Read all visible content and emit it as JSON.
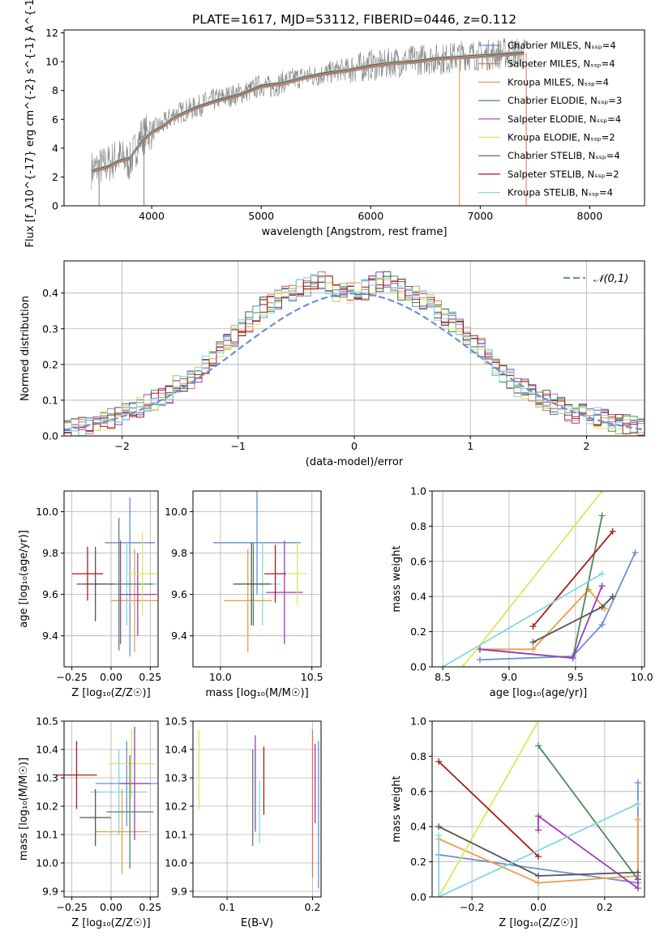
{
  "title": "PLATE=1617, MJD=53112, FIBERID=0446, z=0.112",
  "chart_data": [
    {
      "type": "line",
      "id": "spectrum",
      "xlabel": "wavelength [Angstrom, rest frame]",
      "ylabel": "Flux [f_λ10^{-17} erg cm^{-2} s^{-1} A^{-1}]",
      "xlim": [
        3200,
        8500
      ],
      "ylim": [
        0,
        12.2
      ],
      "xticks": [
        4000,
        5000,
        6000,
        7000,
        8000
      ],
      "yticks": [
        0,
        2,
        4,
        6,
        8,
        10,
        12
      ],
      "grid": false,
      "legend_placement": "right",
      "data": {
        "color": "#808080",
        "x": [
          3450,
          3500,
          3600,
          3700,
          3800,
          3900,
          4000,
          4100,
          4200,
          4300,
          4400,
          4500,
          4600,
          4700,
          4800,
          4900,
          5000,
          5100,
          5200,
          5300,
          5400,
          5500,
          5600,
          5700,
          5800,
          5900,
          6000,
          6100,
          6200,
          6300,
          6400,
          6500,
          6600,
          6700,
          6800,
          6900,
          7000,
          7100,
          7200,
          7300,
          7400
        ],
        "y": [
          2.5,
          2.6,
          2.9,
          3.4,
          3.0,
          4.8,
          5.2,
          5.6,
          6.3,
          6.6,
          6.8,
          7.2,
          7.4,
          7.6,
          7.8,
          8.0,
          8.4,
          8.2,
          8.6,
          8.8,
          9.0,
          9.0,
          9.2,
          9.4,
          9.5,
          9.6,
          9.8,
          9.7,
          10.0,
          10.0,
          10.1,
          10.2,
          10.2,
          10.2,
          10.4,
          10.5,
          10.4,
          10.5,
          10.6,
          10.6,
          10.6
        ]
      },
      "series": [
        {
          "name": "Chabrier MILES, N_SSP=4",
          "color": "#6a8fd6"
        },
        {
          "name": "Salpeter MILES, N_SSP=4",
          "color": "#e26d58"
        },
        {
          "name": "Kroupa MILES, N_SSP=4",
          "color": "#e8a048"
        },
        {
          "name": "Chabrier ELODIE, N_SSP=3",
          "color": "#4d8a5a"
        },
        {
          "name": "Salpeter ELODIE, N_SSP=4",
          "color": "#9b3cb8"
        },
        {
          "name": "Kroupa ELODIE, N_SSP=2",
          "color": "#d8e85a"
        },
        {
          "name": "Chabrier STELIB, N_SSP=4",
          "color": "#555555"
        },
        {
          "name": "Salpeter STELIB, N_SSP=2",
          "color": "#a51c1c"
        },
        {
          "name": "Kroupa STELIB, N_SSP=4",
          "color": "#7fd8e0"
        }
      ],
      "model_x": [
        3450,
        3600,
        3700,
        3800,
        3900,
        4000,
        4100,
        4200,
        4400,
        4600,
        4800,
        5000,
        5200,
        5400,
        5600,
        5800,
        6000,
        6200,
        6400,
        6600,
        6800,
        7000,
        7200,
        7400
      ],
      "model_y": [
        2.4,
        2.7,
        3.1,
        3.3,
        4.4,
        5.1,
        5.5,
        6.1,
        6.8,
        7.3,
        7.7,
        8.3,
        8.5,
        8.9,
        9.2,
        9.4,
        9.7,
        9.9,
        10.0,
        10.2,
        10.3,
        10.4,
        10.5,
        10.6
      ]
    },
    {
      "type": "bar",
      "id": "residual-histogram",
      "xlabel": "(data-model)/error",
      "ylabel": "Normed distribution",
      "xlim": [
        -2.5,
        2.5
      ],
      "ylim": [
        0,
        0.49
      ],
      "xticks": [
        -2,
        -1,
        0,
        1,
        2
      ],
      "yticks": [
        0.0,
        0.1,
        0.2,
        0.3,
        0.4
      ],
      "grid": true,
      "legend_placement": "top-right",
      "reference_curve": {
        "name": "𝒩(0,1)",
        "color": "#6a8fd6",
        "style": "dashed"
      },
      "bin_width": 0.1,
      "bin_start": -2.5,
      "values": [
        0.018,
        0.02,
        0.024,
        0.03,
        0.035,
        0.04,
        0.05,
        0.06,
        0.065,
        0.07,
        0.08,
        0.09,
        0.1,
        0.11,
        0.12,
        0.14,
        0.15,
        0.16,
        0.18,
        0.2,
        0.22,
        0.24,
        0.26,
        0.28,
        0.3,
        0.32,
        0.34,
        0.36,
        0.37,
        0.38,
        0.39,
        0.4,
        0.41,
        0.42,
        0.43,
        0.43,
        0.42,
        0.4,
        0.41,
        0.4,
        0.4,
        0.41,
        0.42,
        0.43,
        0.44,
        0.42,
        0.41,
        0.4,
        0.39,
        0.38,
        0.37,
        0.35,
        0.33,
        0.32,
        0.3,
        0.28,
        0.26,
        0.25,
        0.22,
        0.2,
        0.18,
        0.16,
        0.14,
        0.13,
        0.12,
        0.11,
        0.1,
        0.09,
        0.08,
        0.07,
        0.065,
        0.06,
        0.055,
        0.05,
        0.045,
        0.04,
        0.035,
        0.03,
        0.025,
        0.02
      ]
    },
    {
      "type": "scatter",
      "id": "age-vs-Z",
      "xlabel": "Z [log₁₀(Z/Z☉)]",
      "ylabel": "age  [log₁₀(age/yr)]",
      "xlim": [
        -0.3,
        0.3
      ],
      "ylim": [
        9.25,
        10.1
      ],
      "xticks": [
        -0.25,
        0.0,
        0.25
      ],
      "yticks": [
        9.4,
        9.6,
        9.8,
        10.0
      ],
      "grid": true,
      "points": [
        {
          "x": 0.12,
          "y": 9.85,
          "xerr": 0.16,
          "yerr": [
            0.55,
            0.22
          ],
          "color": "#6a8fd6"
        },
        {
          "x": 0.1,
          "y": 9.65,
          "xerr": 0.2,
          "yerr": 0.2,
          "color": "#7fd8e0"
        },
        {
          "x": 0.15,
          "y": 9.57,
          "xerr": 0.15,
          "yerr": 0.25,
          "color": "#e8a048"
        },
        {
          "x": 0.05,
          "y": 9.65,
          "xerr": 0.22,
          "yerr": 0.32,
          "color": "#4d8a5a"
        },
        {
          "x": 0.17,
          "y": 9.6,
          "xerr": 0.12,
          "yerr": 0.2,
          "color": "#9b3cb8"
        },
        {
          "x": 0.2,
          "y": 9.7,
          "xerr": 0.1,
          "yerr": 0.2,
          "color": "#d8e85a"
        },
        {
          "x": -0.1,
          "y": 9.65,
          "xerr": 0.12,
          "yerr": 0.18,
          "color": "#555555"
        },
        {
          "x": -0.15,
          "y": 9.7,
          "xerr": 0.1,
          "yerr": 0.13,
          "color": "#a51c1c"
        },
        {
          "x": 0.06,
          "y": 9.61,
          "xerr": 0.0,
          "yerr": 0.25,
          "color": "#9b3cb8"
        }
      ]
    },
    {
      "type": "scatter",
      "id": "age-vs-mass",
      "xlabel": "mass [log₁₀(M/M☉)]",
      "ylabel": "",
      "xlim": [
        9.85,
        10.55
      ],
      "ylim": [
        9.25,
        10.1
      ],
      "xticks": [
        10.0,
        10.5
      ],
      "yticks": [
        9.4,
        9.6,
        9.8,
        10.0
      ],
      "grid": true,
      "points": [
        {
          "x": 10.2,
          "y": 9.85,
          "xerr": 0.24,
          "yerr": 0.25,
          "color": "#6a8fd6"
        },
        {
          "x": 10.23,
          "y": 9.65,
          "xerr": 0.1,
          "yerr": 0.2,
          "color": "#7fd8e0"
        },
        {
          "x": 10.15,
          "y": 9.57,
          "xerr": 0.13,
          "yerr": 0.25,
          "color": "#e8a048"
        },
        {
          "x": 10.18,
          "y": 9.65,
          "xerr": 0.1,
          "yerr": 0.2,
          "color": "#4d8a5a"
        },
        {
          "x": 10.35,
          "y": 9.61,
          "xerr": 0.1,
          "yerr": 0.25,
          "color": "#9b3cb8"
        },
        {
          "x": 10.42,
          "y": 9.7,
          "xerr": 0.05,
          "yerr": 0.15,
          "color": "#d8e85a"
        },
        {
          "x": 10.17,
          "y": 9.65,
          "xerr": 0.1,
          "yerr": 0.2,
          "color": "#555555"
        },
        {
          "x": 10.3,
          "y": 9.7,
          "xerr": 0.06,
          "yerr": 0.14,
          "color": "#a51c1c"
        }
      ]
    },
    {
      "type": "line",
      "id": "mass-weight-vs-age",
      "xlabel": "age  [log₁₀(age/yr)]",
      "ylabel": "mass weight",
      "xlim": [
        8.42,
        10.02
      ],
      "ylim": [
        0,
        1
      ],
      "xticks": [
        8.5,
        9.0,
        9.5,
        10.0
      ],
      "yticks": [
        0.0,
        0.2,
        0.4,
        0.6,
        0.8,
        1.0
      ],
      "grid": true,
      "series": [
        {
          "color": "#6a8fd6",
          "x": [
            8.78,
            9.48,
            9.7,
            9.95
          ],
          "y": [
            0.04,
            0.06,
            0.24,
            0.65
          ]
        },
        {
          "color": "#e8a048",
          "x": [
            8.78,
            9.18,
            9.6,
            9.72
          ],
          "y": [
            0.1,
            0.1,
            0.44,
            0.33
          ]
        },
        {
          "color": "#4d8a5a",
          "x": [
            8.78,
            9.48,
            9.7
          ],
          "y": [
            0.1,
            0.05,
            0.86
          ]
        },
        {
          "color": "#9b3cb8",
          "x": [
            8.78,
            9.48,
            9.7
          ],
          "y": [
            0.1,
            0.05,
            0.46
          ]
        },
        {
          "color": "#d8e85a",
          "x": [
            8.65,
            9.7
          ],
          "y": [
            0.0,
            1.0
          ]
        },
        {
          "color": "#555555",
          "x": [
            9.18,
            9.7,
            9.78
          ],
          "y": [
            0.14,
            0.34,
            0.4
          ]
        },
        {
          "color": "#a51c1c",
          "x": [
            9.18,
            9.78
          ],
          "y": [
            0.23,
            0.77
          ]
        },
        {
          "color": "#7fd8e0",
          "x": [
            8.5,
            9.7
          ],
          "y": [
            0.0,
            0.53
          ]
        }
      ]
    },
    {
      "type": "scatter",
      "id": "mass-vs-Z",
      "xlabel": "Z [log₁₀(Z/Z☉)]",
      "ylabel": "mass [log₁₀(M/M☉)]",
      "xlim": [
        -0.3,
        0.3
      ],
      "ylim": [
        9.88,
        10.5
      ],
      "xticks": [
        -0.25,
        0.0,
        0.25
      ],
      "yticks": [
        9.9,
        10.0,
        10.1,
        10.2,
        10.3,
        10.4,
        10.5
      ],
      "grid": true,
      "points": [
        {
          "x": 0.1,
          "y": 10.28,
          "xerr": 0.2,
          "yerr": 0.15,
          "color": "#6a8fd6"
        },
        {
          "x": 0.13,
          "y": 10.35,
          "xerr": 0.15,
          "yerr": 0.12,
          "color": "#d8e85a"
        },
        {
          "x": 0.05,
          "y": 10.25,
          "xerr": 0.18,
          "yerr": 0.15,
          "color": "#7fd8e0"
        },
        {
          "x": 0.07,
          "y": 10.11,
          "xerr": 0.17,
          "yerr": 0.15,
          "color": "#e8a048"
        },
        {
          "x": 0.12,
          "y": 10.18,
          "xerr": 0.15,
          "yerr": 0.2,
          "color": "#4d8a5a"
        },
        {
          "x": 0.15,
          "y": 10.28,
          "xerr": 0.1,
          "yerr": 0.2,
          "color": "#9b3cb8"
        },
        {
          "x": -0.1,
          "y": 10.16,
          "xerr": 0.1,
          "yerr": 0.1,
          "color": "#555555"
        },
        {
          "x": -0.22,
          "y": 10.31,
          "xerr": 0.13,
          "yerr": 0.12,
          "color": "#a51c1c"
        }
      ]
    },
    {
      "type": "scatter",
      "id": "mass-vs-ebv",
      "xlabel": "E(B-V)",
      "ylabel": "",
      "xlim": [
        0.06,
        0.21
      ],
      "ylim": [
        9.88,
        10.5
      ],
      "xticks": [
        0.1,
        0.2
      ],
      "yticks": [
        9.9,
        10.0,
        10.1,
        10.2,
        10.3,
        10.4,
        10.5
      ],
      "grid": true,
      "points": [
        {
          "x": 0.067,
          "y": 10.33,
          "yerr": 0.14,
          "color": "#d8e85a"
        },
        {
          "x": 0.13,
          "y": 10.23,
          "yerr": 0.17,
          "color": "#4d8a5a"
        },
        {
          "x": 0.133,
          "y": 10.28,
          "yerr": 0.17,
          "color": "#9b3cb8"
        },
        {
          "x": 0.138,
          "y": 10.18,
          "yerr": 0.11,
          "color": "#7fd8e0"
        },
        {
          "x": 0.143,
          "y": 10.29,
          "yerr": 0.12,
          "color": "#a51c1c"
        },
        {
          "x": 0.2,
          "y": 10.21,
          "yerr": 0.26,
          "color": "#e26d58"
        },
        {
          "x": 0.203,
          "y": 10.28,
          "yerr": 0.14,
          "color": "#9b3cb8"
        },
        {
          "x": 0.207,
          "y": 10.17,
          "yerr": 0.26,
          "color": "#6a8fd6"
        }
      ]
    },
    {
      "type": "line",
      "id": "mass-weight-vs-Z",
      "xlabel": "Z [log₁₀(Z/Z☉)]",
      "ylabel": "mass weight",
      "xlim": [
        -0.32,
        0.32
      ],
      "ylim": [
        0,
        1
      ],
      "xticks": [
        -0.2,
        0.0,
        0.2
      ],
      "yticks": [
        0.0,
        0.2,
        0.4,
        0.6,
        0.8,
        1.0
      ],
      "grid": true,
      "series": [
        {
          "color": "#6a8fd6",
          "x": [
            -0.3,
            0.3,
            0.3
          ],
          "y": [
            0.24,
            0.08,
            0.65
          ]
        },
        {
          "color": "#e8a048",
          "x": [
            -0.3,
            0.0,
            0.3,
            0.3
          ],
          "y": [
            0.33,
            0.08,
            0.12,
            0.44
          ]
        },
        {
          "color": "#4d8a5a",
          "x": [
            0.0,
            0.3
          ],
          "y": [
            0.86,
            0.1
          ]
        },
        {
          "color": "#9b3cb8",
          "x": [
            0.0,
            0.0,
            0.3,
            0.3
          ],
          "y": [
            0.38,
            0.46,
            0.05,
            0.1
          ]
        },
        {
          "color": "#d8e85a",
          "x": [
            -0.3,
            0.0
          ],
          "y": [
            0.0,
            1.0
          ]
        },
        {
          "color": "#555555",
          "x": [
            -0.3,
            0.0,
            0.3
          ],
          "y": [
            0.4,
            0.12,
            0.14
          ]
        },
        {
          "color": "#a51c1c",
          "x": [
            -0.3,
            0.0
          ],
          "y": [
            0.77,
            0.23
          ]
        },
        {
          "color": "#7fd8e0",
          "x": [
            -0.3,
            -0.3,
            0.3
          ],
          "y": [
            0.35,
            0.0,
            0.53
          ]
        }
      ]
    }
  ]
}
